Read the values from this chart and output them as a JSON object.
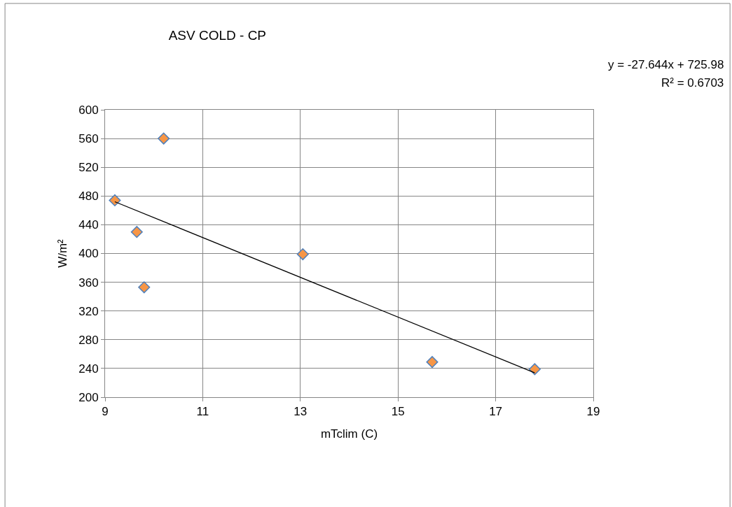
{
  "chart_data": {
    "type": "scatter",
    "title": "ASV COLD - CP",
    "xlabel": "mTclim (C)",
    "ylabel": "W/m²",
    "series": [
      {
        "color": "#f79646",
        "x": [
          9.2,
          9.65,
          9.8,
          10.2,
          13.05,
          15.7,
          17.8
        ],
        "values": [
          474,
          430,
          353,
          560,
          399,
          249,
          239
        ]
      },
      {
        "type": "line",
        "color": "#000000",
        "marker": "none",
        "x": [
          9.2,
          17.8
        ],
        "values": [
          472,
          234
        ]
      }
    ],
    "annotations": [
      "y = -27.644x + 725.98",
      "R² = 0.6703"
    ],
    "xlim": [
      9,
      19
    ],
    "xticks": [
      9,
      11,
      13,
      15,
      17,
      19
    ],
    "ylim": [
      200,
      600
    ],
    "yticks": [
      200,
      240,
      280,
      320,
      360,
      400,
      440,
      480,
      520,
      560,
      600
    ],
    "grid": true,
    "marker": "diamond"
  }
}
